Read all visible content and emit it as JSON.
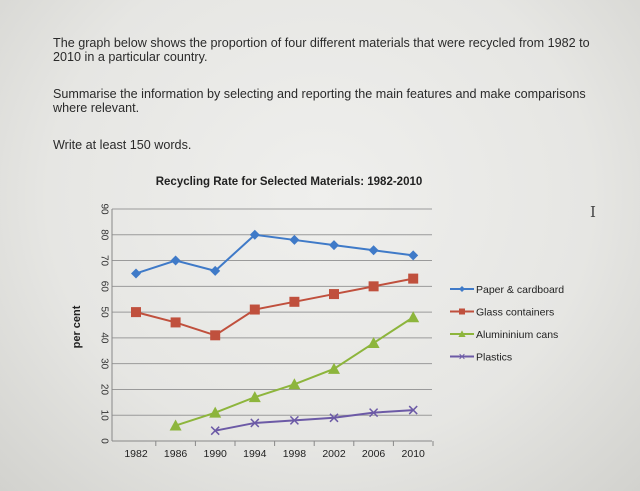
{
  "prompt": {
    "paragraph1": "The graph below shows the proportion of four different materials that were recycled from 1982 to 2010 in a particular country.",
    "paragraph2": "Summarise the information by selecting and reporting the main features and make comparisons where relevant.",
    "paragraph3": "Write at least 150 words."
  },
  "chart_data": {
    "type": "line",
    "title": "Recycling Rate for Selected Materials: 1982-2010",
    "xlabel": "",
    "ylabel": "per cent",
    "ylim": [
      0,
      90
    ],
    "yticks": [
      0,
      10,
      20,
      30,
      40,
      50,
      60,
      70,
      80,
      90
    ],
    "categories": [
      "1982",
      "1986",
      "1990",
      "1994",
      "1998",
      "2002",
      "2006",
      "2010"
    ],
    "grid": true,
    "legend": "right",
    "series": [
      {
        "name": "Paper & cardboard",
        "color": "#3f7ac8",
        "marker": "diamond",
        "values": [
          65,
          70,
          66,
          80,
          78,
          76,
          74,
          72
        ]
      },
      {
        "name": "Glass containers",
        "color": "#c0503d",
        "marker": "square",
        "values": [
          50,
          46,
          41,
          51,
          54,
          57,
          60,
          63
        ]
      },
      {
        "name": "Alumininium cans",
        "color": "#8db53c",
        "marker": "triangle",
        "values": [
          null,
          6,
          11,
          17,
          22,
          28,
          38,
          48
        ]
      },
      {
        "name": "Plastics",
        "color": "#6c5aa6",
        "marker": "x",
        "values": [
          null,
          null,
          4,
          7,
          8,
          9,
          11,
          12
        ]
      }
    ]
  },
  "cursor_icon": "text-cursor-icon"
}
